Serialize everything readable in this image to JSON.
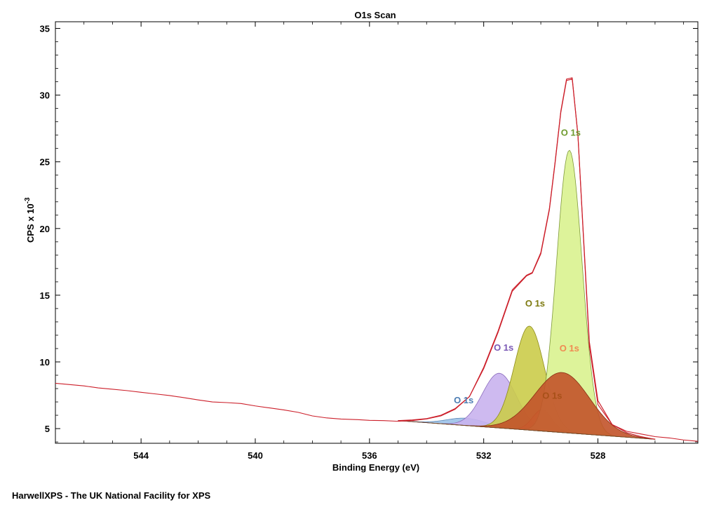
{
  "footer_text": "HarwellXPS - The UK National Facility for XPS",
  "chart_data": {
    "type": "line",
    "title": "O1s Scan",
    "xlabel": "Binding Energy (eV)",
    "ylabel_main": "CPS x 10",
    "ylabel_exponent": "-3",
    "xlim": [
      547,
      524.5
    ],
    "x_reversed": true,
    "ylim": [
      3.9,
      35.5
    ],
    "x_ticks": [
      544,
      540,
      536,
      532,
      528
    ],
    "x_tick_labels": [
      "544",
      "540",
      "536",
      "532",
      "528"
    ],
    "y_ticks": [
      5,
      10,
      15,
      20,
      25,
      30,
      35
    ],
    "y_tick_labels": [
      "5",
      "10",
      "15",
      "20",
      "25",
      "30",
      "35"
    ],
    "grid": false,
    "legend": "none",
    "colors": {
      "envelope": "#cc1f2a",
      "raw": "#cc1f2a",
      "axis": "#000000"
    },
    "raw_spectrum": {
      "name": "",
      "color": "#cc1f2a",
      "x": [
        547.0,
        546.5,
        546.0,
        545.5,
        545.0,
        544.5,
        544.0,
        543.5,
        543.0,
        542.5,
        542.0,
        541.5,
        541.0,
        540.5,
        540.0,
        539.5,
        539.0,
        538.5,
        538.0,
        537.5,
        537.0,
        536.5,
        536.0,
        535.5,
        535.0,
        534.5,
        534.0,
        533.5,
        533.0,
        532.5,
        532.0,
        531.5,
        531.0,
        530.5,
        530.3,
        530.0,
        529.7,
        529.5,
        529.3,
        529.1,
        528.9,
        528.7,
        528.5,
        528.3,
        528.0,
        527.5,
        527.0,
        526.5,
        526.0,
        525.5,
        525.0,
        524.5
      ],
      "y": [
        8.4,
        8.3,
        8.2,
        8.05,
        7.95,
        7.85,
        7.72,
        7.6,
        7.48,
        7.32,
        7.15,
        7.0,
        6.95,
        6.88,
        6.7,
        6.55,
        6.4,
        6.22,
        5.95,
        5.8,
        5.72,
        5.68,
        5.62,
        5.6,
        5.55,
        5.6,
        5.72,
        5.95,
        6.45,
        7.4,
        9.6,
        12.3,
        15.4,
        16.5,
        16.7,
        18.2,
        21.5,
        25.0,
        28.8,
        31.2,
        31.3,
        27.0,
        19.0,
        11.2,
        6.8,
        5.3,
        4.8,
        4.6,
        4.4,
        4.3,
        4.15,
        4.05
      ]
    },
    "envelope": {
      "name": "",
      "color": "#cc1f2a",
      "x": [
        535.0,
        534.5,
        534.0,
        533.5,
        533.0,
        532.5,
        532.0,
        531.5,
        531.0,
        530.5,
        530.3,
        530.0,
        529.7,
        529.5,
        529.3,
        529.1,
        528.9,
        528.7,
        528.5,
        528.3,
        528.0,
        527.5,
        527.0,
        526.5,
        526.0
      ],
      "y": [
        5.6,
        5.65,
        5.75,
        6.0,
        6.5,
        7.4,
        9.5,
        12.2,
        15.3,
        16.45,
        16.65,
        18.1,
        21.4,
        24.9,
        28.7,
        31.1,
        31.2,
        27.0,
        19.2,
        11.5,
        7.1,
        5.3,
        4.7,
        4.4,
        4.2
      ]
    },
    "baseline": {
      "name": "",
      "x_start": 535.0,
      "x_end": 526.0,
      "y_start": 5.6,
      "y_end": 4.2
    },
    "components": [
      {
        "name": "",
        "label": "O 1s",
        "center": 532.6,
        "height": 0.55,
        "fwhm": 1.6,
        "fill": "#9cc2e8",
        "stroke": "#5b86b5",
        "label_color": "#4c7db3",
        "label_at": [
          532.7,
          6.9
        ]
      },
      {
        "name": "",
        "label": "O 1s",
        "center": 531.45,
        "height": 4.1,
        "fwhm": 1.4,
        "fill": "#c9b2ee",
        "stroke": "#8a6bbd",
        "label_color": "#7a58b5",
        "label_at": [
          531.3,
          10.85
        ]
      },
      {
        "name": "",
        "label": "O 1s",
        "center": 530.4,
        "height": 7.8,
        "fwhm": 1.25,
        "fill": "#cbcc4a",
        "stroke": "#8c8a1a",
        "label_color": "#7d7a10",
        "label_at": [
          530.2,
          14.15
        ]
      },
      {
        "name": "",
        "label": "O 1s",
        "center": 529.95,
        "height": 1.6,
        "fwhm": 0.8,
        "fill": "#f2a355",
        "stroke": "#c46a1c",
        "label_color": "#a85018",
        "label_at": [
          529.6,
          7.25
        ]
      },
      {
        "name": "",
        "label": "O 1s",
        "center": 529.0,
        "height": 21.2,
        "fwhm": 1.05,
        "fill": "#d9f28f",
        "stroke": "#7f9a3a",
        "label_color": "#6e9a2e",
        "label_at": [
          528.95,
          26.95
        ]
      },
      {
        "name": "",
        "label": "O 1s",
        "center": 529.25,
        "height": 4.5,
        "fwhm": 2.25,
        "fill": "#c2532a",
        "stroke": "#8a2f14",
        "label_color": "#f08a52",
        "label_at": [
          529.0,
          10.8
        ]
      }
    ]
  }
}
